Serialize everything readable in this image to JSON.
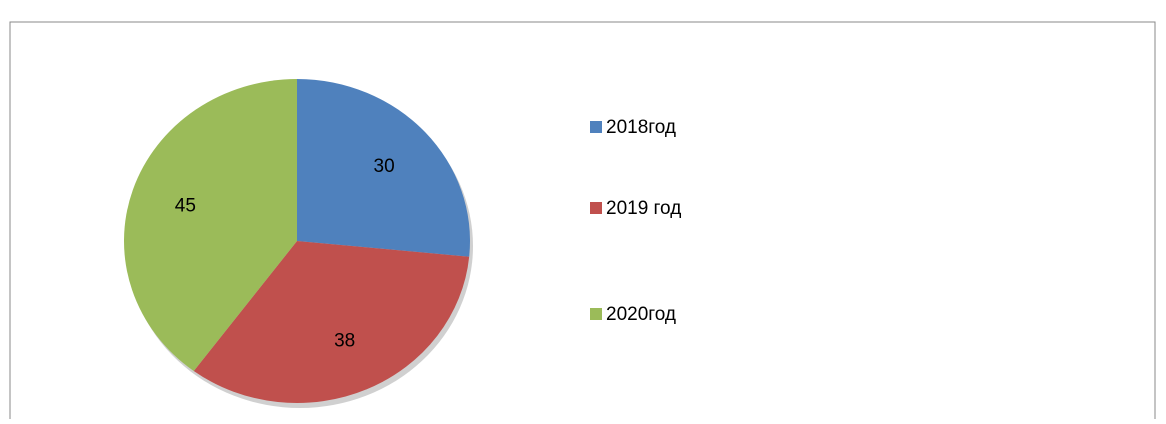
{
  "chart_data": {
    "type": "pie",
    "categories": [
      "2018год",
      "2019 год",
      "2020год"
    ],
    "values": [
      30,
      38,
      45
    ],
    "colors": [
      "#4f81bd",
      "#c0504d",
      "#9bbb59"
    ],
    "legend": "right"
  }
}
